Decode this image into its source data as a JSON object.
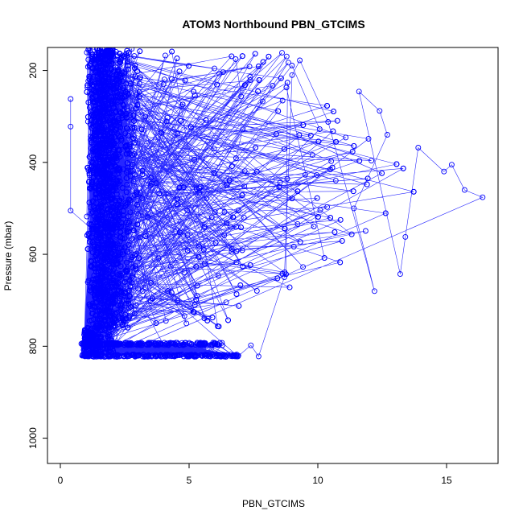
{
  "chart_data": {
    "type": "scatter",
    "title": "ATOM3 Northbound PBN_GTCIMS",
    "xlabel": "PBN_GTCIMS",
    "ylabel": "Pressure (mbar)",
    "xlim": [
      -0.5,
      17
    ],
    "ylim": [
      1055,
      150
    ],
    "y_reversed": true,
    "x_ticks": [
      0,
      5,
      10,
      15
    ],
    "y_ticks": [
      200,
      400,
      600,
      800,
      1000
    ],
    "series_color": "#0000ff",
    "marker": "open-circle",
    "connect_points": true,
    "grid": false,
    "legend": "none",
    "highlight_points": [
      {
        "x": 16.4,
        "y": 476
      },
      {
        "x": 15.7,
        "y": 460
      },
      {
        "x": 15.2,
        "y": 405
      },
      {
        "x": 14.9,
        "y": 420
      },
      {
        "x": 13.9,
        "y": 368
      },
      {
        "x": 13.4,
        "y": 562
      },
      {
        "x": 13.2,
        "y": 643
      },
      {
        "x": 11.6,
        "y": 246
      },
      {
        "x": 12.4,
        "y": 288
      },
      {
        "x": 12.7,
        "y": 340
      },
      {
        "x": 11.4,
        "y": 500
      },
      {
        "x": 12.2,
        "y": 680
      },
      {
        "x": 10.4,
        "y": 312
      },
      {
        "x": 9.3,
        "y": 178
      },
      {
        "x": 9.0,
        "y": 210
      },
      {
        "x": 8.7,
        "y": 650
      },
      {
        "x": 7.7,
        "y": 822
      },
      {
        "x": 7.4,
        "y": 798
      },
      {
        "x": 6.9,
        "y": 822
      },
      {
        "x": 0.4,
        "y": 505
      },
      {
        "x": 0.4,
        "y": 262
      },
      {
        "x": 0.4,
        "y": 322
      }
    ]
  }
}
